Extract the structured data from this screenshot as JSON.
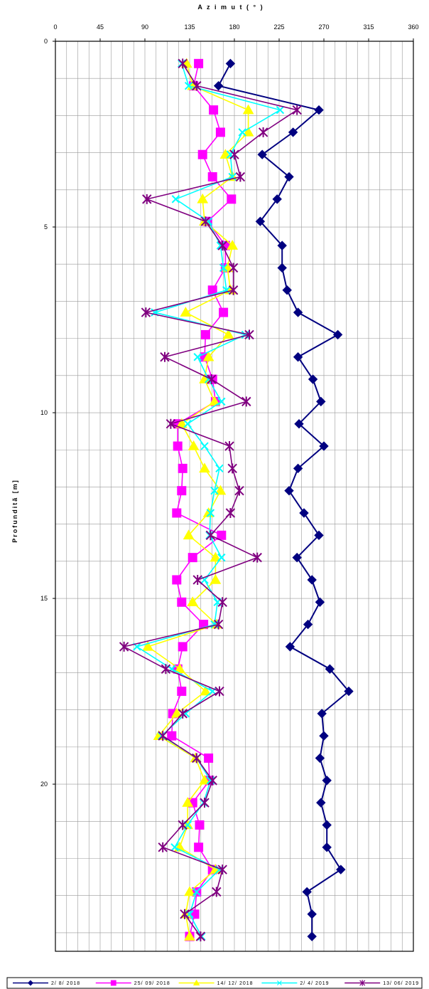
{
  "chart_data": {
    "type": "line",
    "xlabel": "A z i m u t  ( ° )",
    "ylabel": "Profunditã [m]",
    "xlim": [
      0,
      360
    ],
    "ylim": [
      0,
      24.5
    ],
    "x_orientation": "top",
    "y_inverted": true,
    "x_ticks": [
      "0",
      "45",
      "90",
      "135",
      "180",
      "225",
      "270",
      "315",
      "360"
    ],
    "y_ticks": [
      "0",
      "5",
      "10",
      "15",
      "20"
    ],
    "grid": true,
    "legend_position": "bottom",
    "series": [
      {
        "name": "2/ 8/ 2018",
        "color": "#000080",
        "marker": "diamond",
        "points": [
          [
            176,
            0.6
          ],
          [
            164,
            1.2
          ],
          [
            265,
            1.85
          ],
          [
            239,
            2.45
          ],
          [
            208,
            3.05
          ],
          [
            235,
            3.65
          ],
          [
            223,
            4.25
          ],
          [
            206,
            4.85
          ],
          [
            228,
            5.5
          ],
          [
            228,
            6.1
          ],
          [
            233,
            6.7
          ],
          [
            244,
            7.3
          ],
          [
            284,
            7.9
          ],
          [
            244,
            8.5
          ],
          [
            259,
            9.1
          ],
          [
            267,
            9.7
          ],
          [
            245,
            10.3
          ],
          [
            270,
            10.9
          ],
          [
            244,
            11.5
          ],
          [
            235,
            12.1
          ],
          [
            250,
            12.7
          ],
          [
            265,
            13.3
          ],
          [
            243,
            13.9
          ],
          [
            258,
            14.5
          ],
          [
            266,
            15.1
          ],
          [
            254,
            15.7
          ],
          [
            236,
            16.3
          ],
          [
            276,
            16.9
          ],
          [
            295,
            17.5
          ],
          [
            268,
            18.1
          ],
          [
            270,
            18.7
          ],
          [
            266,
            19.3
          ],
          [
            273,
            19.9
          ],
          [
            267,
            20.5
          ],
          [
            273,
            21.1
          ],
          [
            273,
            21.7
          ],
          [
            287,
            22.3
          ],
          [
            253,
            22.9
          ],
          [
            258,
            23.5
          ],
          [
            258,
            24.1
          ]
        ]
      },
      {
        "name": "25/ 09/ 2018",
        "color": "#FF00FF",
        "marker": "square",
        "points": [
          [
            144,
            0.6
          ],
          [
            139,
            1.2
          ],
          [
            159,
            1.85
          ],
          [
            166,
            2.45
          ],
          [
            148,
            3.05
          ],
          [
            158,
            3.65
          ],
          [
            177,
            4.25
          ],
          [
            153,
            4.85
          ],
          [
            171,
            5.5
          ],
          [
            171,
            6.1
          ],
          [
            158,
            6.7
          ],
          [
            169,
            7.3
          ],
          [
            151,
            7.9
          ],
          [
            150,
            8.5
          ],
          [
            158,
            9.1
          ],
          [
            161,
            9.7
          ],
          [
            123,
            10.3
          ],
          [
            123,
            10.9
          ],
          [
            128,
            11.5
          ],
          [
            127,
            12.1
          ],
          [
            122,
            12.7
          ],
          [
            167,
            13.3
          ],
          [
            138,
            13.9
          ],
          [
            122,
            14.5
          ],
          [
            127,
            15.1
          ],
          [
            149,
            15.7
          ],
          [
            128,
            16.3
          ],
          [
            123,
            16.9
          ],
          [
            127,
            17.5
          ],
          [
            118,
            18.1
          ],
          [
            117,
            18.7
          ],
          [
            154,
            19.3
          ],
          [
            155,
            19.9
          ],
          [
            138,
            20.5
          ],
          [
            145,
            21.1
          ],
          [
            144,
            21.7
          ],
          [
            158,
            22.3
          ],
          [
            142,
            22.9
          ],
          [
            140,
            23.5
          ],
          [
            135,
            24.1
          ]
        ]
      },
      {
        "name": "14/ 12/ 2018",
        "color": "#FFFF00",
        "marker": "triangle",
        "points": [
          [
            132,
            0.6
          ],
          [
            138,
            1.2
          ],
          [
            194,
            1.85
          ],
          [
            194,
            2.45
          ],
          [
            171,
            3.05
          ],
          [
            178,
            3.65
          ],
          [
            148,
            4.25
          ],
          [
            150,
            4.85
          ],
          [
            178,
            5.5
          ],
          [
            173,
            6.1
          ],
          [
            176,
            6.7
          ],
          [
            131,
            7.3
          ],
          [
            174,
            7.9
          ],
          [
            154,
            8.5
          ],
          [
            150,
            9.1
          ],
          [
            160,
            9.7
          ],
          [
            127,
            10.3
          ],
          [
            139,
            10.9
          ],
          [
            150,
            11.5
          ],
          [
            166,
            12.1
          ],
          [
            154,
            12.7
          ],
          [
            134,
            13.3
          ],
          [
            161,
            13.9
          ],
          [
            161,
            14.5
          ],
          [
            138,
            15.1
          ],
          [
            162,
            15.7
          ],
          [
            93,
            16.3
          ],
          [
            125,
            16.9
          ],
          [
            151,
            17.5
          ],
          [
            122,
            18.1
          ],
          [
            104,
            18.7
          ],
          [
            141,
            19.3
          ],
          [
            150,
            19.9
          ],
          [
            133,
            20.5
          ],
          [
            133,
            21.1
          ],
          [
            125,
            21.7
          ],
          [
            161,
            22.3
          ],
          [
            135,
            22.9
          ],
          [
            131,
            23.5
          ],
          [
            135,
            24.1
          ]
        ]
      },
      {
        "name": "2/ 4/ 2019",
        "color": "#00FFFF",
        "marker": "x",
        "points": [
          [
            127,
            0.6
          ],
          [
            134,
            1.2
          ],
          [
            226,
            1.85
          ],
          [
            188,
            2.45
          ],
          [
            176,
            3.05
          ],
          [
            178,
            3.65
          ],
          [
            121,
            4.25
          ],
          [
            154,
            4.85
          ],
          [
            166,
            5.5
          ],
          [
            169,
            6.1
          ],
          [
            172,
            6.7
          ],
          [
            100,
            7.3
          ],
          [
            191,
            7.9
          ],
          [
            143,
            8.5
          ],
          [
            154,
            9.1
          ],
          [
            167,
            9.7
          ],
          [
            133,
            10.3
          ],
          [
            150,
            10.9
          ],
          [
            165,
            11.5
          ],
          [
            160,
            12.1
          ],
          [
            156,
            12.7
          ],
          [
            155,
            13.3
          ],
          [
            167,
            13.9
          ],
          [
            150,
            14.5
          ],
          [
            163,
            15.1
          ],
          [
            160,
            15.7
          ],
          [
            82,
            16.3
          ],
          [
            117,
            16.9
          ],
          [
            158,
            17.5
          ],
          [
            131,
            18.1
          ],
          [
            107,
            18.7
          ],
          [
            142,
            19.3
          ],
          [
            156,
            19.9
          ],
          [
            149,
            20.5
          ],
          [
            133,
            21.1
          ],
          [
            120,
            21.7
          ],
          [
            165,
            22.3
          ],
          [
            142,
            22.9
          ],
          [
            135,
            23.5
          ],
          [
            147,
            24.1
          ]
        ]
      },
      {
        "name": "13/ 06/ 2019",
        "color": "#800080",
        "marker": "star",
        "points": [
          [
            128,
            0.6
          ],
          [
            142,
            1.2
          ],
          [
            243,
            1.85
          ],
          [
            209,
            2.45
          ],
          [
            180,
            3.05
          ],
          [
            186,
            3.65
          ],
          [
            92,
            4.25
          ],
          [
            151,
            4.85
          ],
          [
            168,
            5.5
          ],
          [
            179,
            6.1
          ],
          [
            179,
            6.7
          ],
          [
            91,
            7.3
          ],
          [
            195,
            7.9
          ],
          [
            110,
            8.5
          ],
          [
            157,
            9.1
          ],
          [
            192,
            9.7
          ],
          [
            116,
            10.3
          ],
          [
            175,
            10.9
          ],
          [
            178,
            11.5
          ],
          [
            185,
            12.1
          ],
          [
            176,
            12.7
          ],
          [
            156,
            13.3
          ],
          [
            203,
            13.9
          ],
          [
            143,
            14.5
          ],
          [
            168,
            15.1
          ],
          [
            164,
            15.7
          ],
          [
            69,
            16.3
          ],
          [
            111,
            16.9
          ],
          [
            165,
            17.5
          ],
          [
            128,
            18.1
          ],
          [
            108,
            18.7
          ],
          [
            142,
            19.3
          ],
          [
            158,
            19.9
          ],
          [
            150,
            20.5
          ],
          [
            128,
            21.1
          ],
          [
            108,
            21.7
          ],
          [
            168,
            22.3
          ],
          [
            162,
            22.9
          ],
          [
            130,
            23.5
          ],
          [
            146,
            24.1
          ]
        ]
      }
    ]
  }
}
